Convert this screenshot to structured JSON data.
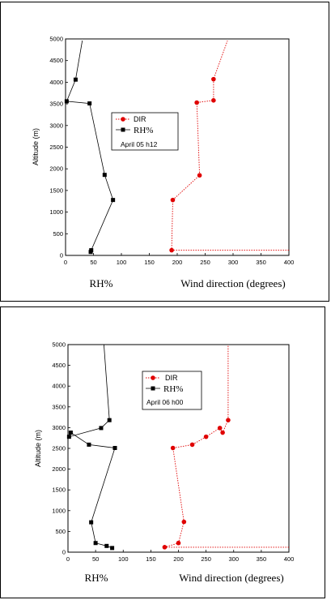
{
  "chart_data": [
    {
      "type": "line",
      "xlim": [
        0,
        400
      ],
      "ylim": [
        0,
        5000
      ],
      "xticks": [
        "0",
        "50",
        "100",
        "150",
        "200",
        "250",
        "300",
        "350",
        "400"
      ],
      "yticks": [
        "0",
        "500",
        "1000",
        "1500",
        "2000",
        "2500",
        "3000",
        "3500",
        "4000",
        "4500",
        "5000"
      ],
      "ylabel": "Altitude (m)",
      "xlabel_left": "RH%",
      "xlabel_right": "Wind direction (degrees)",
      "legend": {
        "dir": "DIR",
        "rh": "RH%",
        "date": "April 05 h12"
      },
      "series": [
        {
          "name": "DIR",
          "color": "#e00000",
          "x": [
            400,
            190,
            192,
            240,
            235,
            265,
            265,
            290
          ],
          "y": [
            120,
            120,
            1280,
            1850,
            3530,
            3580,
            4070,
            4960
          ],
          "marker_from": 1,
          "marker_to": 6
        },
        {
          "name": "RH%",
          "color": "#000000",
          "x": [
            45,
            46,
            85,
            70,
            43,
            2,
            18,
            30
          ],
          "y": [
            80,
            120,
            1280,
            1860,
            3510,
            3560,
            4060,
            4960
          ],
          "marker_from": 0,
          "marker_to": 6
        }
      ]
    },
    {
      "type": "line",
      "xlim": [
        0,
        400
      ],
      "ylim": [
        0,
        5000
      ],
      "xticks": [
        "0",
        "50",
        "100",
        "150",
        "200",
        "250",
        "300",
        "350",
        "400"
      ],
      "yticks": [
        "0",
        "500",
        "1000",
        "1500",
        "2000",
        "2500",
        "3000",
        "3500",
        "4000",
        "4500",
        "5000"
      ],
      "ylabel": "Altitude (m)",
      "xlabel_left": "RH%",
      "xlabel_right": "Wind direction (degrees)",
      "legend": {
        "dir": "DIR",
        "rh": "RH%",
        "date": "April 06 h00"
      },
      "series": [
        {
          "name": "DIR",
          "color": "#e00000",
          "x": [
            400,
            175,
            200,
            210,
            190,
            225,
            250,
            275,
            280,
            290,
            290
          ],
          "y": [
            120,
            120,
            220,
            730,
            2510,
            2590,
            2780,
            2990,
            2880,
            3180,
            5000
          ],
          "marker_from": 1,
          "marker_to": 9
        },
        {
          "name": "RH%",
          "color": "#000000",
          "x": [
            80,
            70,
            50,
            42,
            85,
            38,
            5,
            2,
            60,
            75,
            65
          ],
          "y": [
            100,
            150,
            220,
            720,
            2510,
            2590,
            2880,
            2780,
            2990,
            3180,
            5000
          ],
          "marker_from": 0,
          "marker_to": 9
        }
      ]
    }
  ]
}
